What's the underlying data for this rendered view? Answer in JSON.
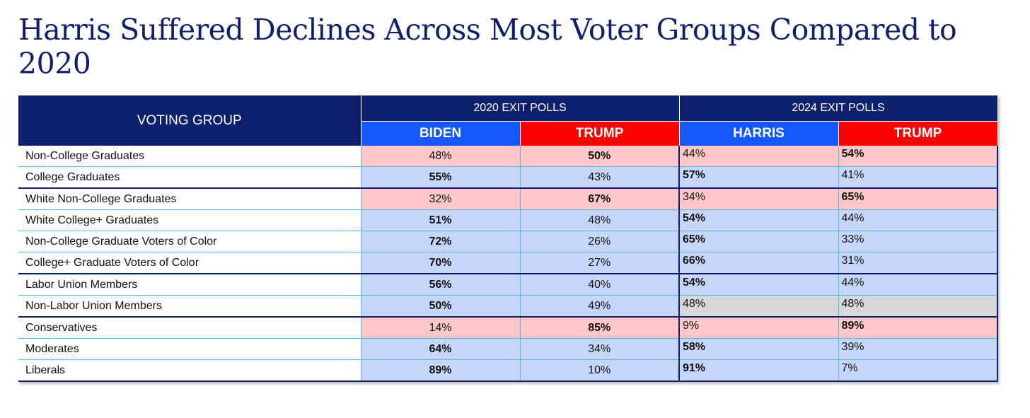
{
  "chart_data": {
    "type": "table",
    "title": "Harris Suffered Declines Across Most Voter Groups Compared to 2020",
    "header": {
      "group": "VOTING GROUP",
      "year_2020": "2020 EXIT POLLS",
      "year_2024": "2024 EXIT POLLS",
      "dem_2020": "BIDEN",
      "rep_2020": "TRUMP",
      "dem_2024": "HARRIS",
      "rep_2024": "TRUMP"
    },
    "rows": [
      {
        "group": "Non-College Graduates",
        "biden": "48%",
        "trump20": "50%",
        "harris": "44%",
        "trump24": "54%"
      },
      {
        "group": "College Graduates",
        "biden": "55%",
        "trump20": "43%",
        "harris": "57%",
        "trump24": "41%"
      },
      {
        "group": "White Non-College Graduates",
        "biden": "32%",
        "trump20": "67%",
        "harris": "34%",
        "trump24": "65%"
      },
      {
        "group": "White College+ Graduates",
        "biden": "51%",
        "trump20": "48%",
        "harris": "54%",
        "trump24": "44%"
      },
      {
        "group": "Non-College Graduate Voters of Color",
        "biden": "72%",
        "trump20": "26%",
        "harris": "65%",
        "trump24": "33%"
      },
      {
        "group": "College+ Graduate Voters of Color",
        "biden": "70%",
        "trump20": "27%",
        "harris": "66%",
        "trump24": "31%"
      },
      {
        "group": "Labor Union Members",
        "biden": "56%",
        "trump20": "40%",
        "harris": "54%",
        "trump24": "44%"
      },
      {
        "group": "Non-Labor Union Members",
        "biden": "50%",
        "trump20": "49%",
        "harris": "48%",
        "trump24": "48%"
      },
      {
        "group": "Conservatives",
        "biden": "14%",
        "trump20": "85%",
        "harris": "9%",
        "trump24": "89%"
      },
      {
        "group": "Moderates",
        "biden": "64%",
        "trump20": "34%",
        "harris": "58%",
        "trump24": "39%"
      },
      {
        "group": "Liberals",
        "biden": "89%",
        "trump20": "10%",
        "harris": "91%",
        "trump24": "7%"
      }
    ]
  },
  "colors": {
    "navy": "#0e1f6b",
    "dem_header": "#1359ff",
    "rep_header": "#ff0000",
    "dem_fill": "#c7d6f8",
    "rep_fill": "#ffc7c7",
    "tie_fill": "#d7d7d7"
  }
}
